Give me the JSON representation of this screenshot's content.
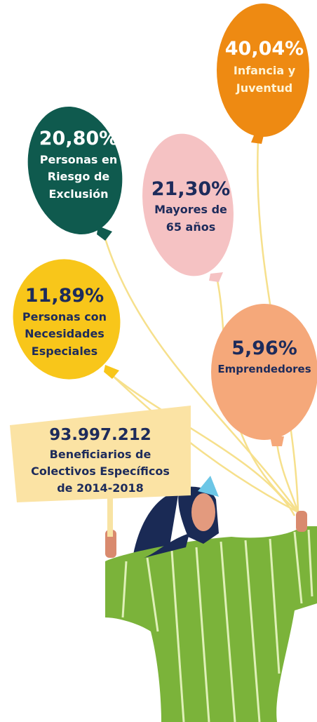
{
  "balloons": [
    {
      "value": "40,04%",
      "label": [
        "Infancia y",
        "Juventud"
      ]
    },
    {
      "value": "20,80%",
      "label": [
        "Personas en",
        "Riesgo de",
        "Exclusión"
      ]
    },
    {
      "value": "21,30%",
      "label": [
        "Mayores de",
        "65 años"
      ]
    },
    {
      "value": "11,89%",
      "label": [
        "Personas con",
        "Necesidades",
        "Especiales"
      ]
    },
    {
      "value": "5,96%",
      "label": [
        "Emprendedores"
      ]
    }
  ],
  "sign": {
    "total": "93.997.212",
    "lines": [
      "Beneficiarios de",
      "Colectivos Específicos",
      "de 2014-2018"
    ]
  }
}
